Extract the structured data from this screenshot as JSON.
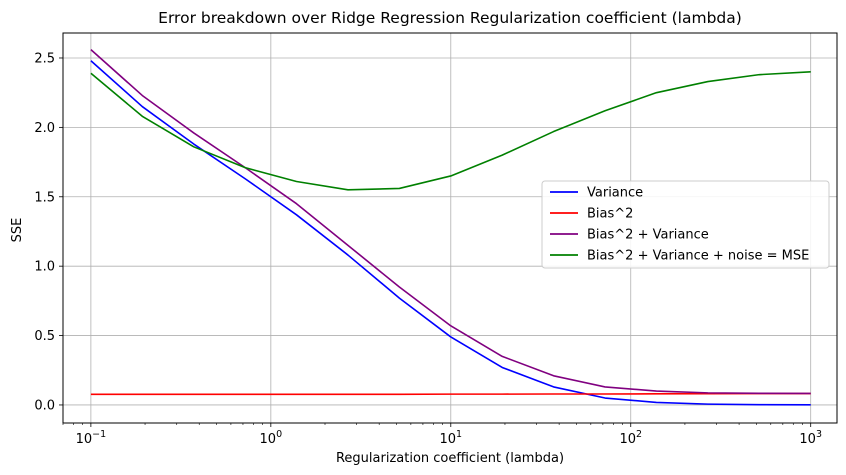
{
  "chart_data": {
    "type": "line",
    "title": "Error breakdown over Ridge Regression Regularization coefficient (lambda)",
    "xlabel": "Regularization coefficient (lambda)",
    "ylabel": "SSE",
    "xscale": "log",
    "xlim": [
      0.07,
      1400
    ],
    "ylim": [
      -0.13,
      2.68
    ],
    "grid": true,
    "legend_position": "center-right",
    "x_ticks": [
      {
        "value": 0.1,
        "base": "10",
        "exp": "−1"
      },
      {
        "value": 1,
        "base": "10",
        "exp": "0"
      },
      {
        "value": 10,
        "base": "10",
        "exp": "1"
      },
      {
        "value": 100,
        "base": "10",
        "exp": "2"
      },
      {
        "value": 1000,
        "base": "10",
        "exp": "3"
      }
    ],
    "y_ticks": [
      {
        "value": 0.0,
        "label": "0.0"
      },
      {
        "value": 0.5,
        "label": "0.5"
      },
      {
        "value": 1.0,
        "label": "1.0"
      },
      {
        "value": 1.5,
        "label": "1.5"
      },
      {
        "value": 2.0,
        "label": "2.0"
      },
      {
        "value": 2.5,
        "label": "2.5"
      }
    ],
    "x": [
      0.1,
      0.193,
      0.373,
      0.72,
      1.389,
      2.683,
      5.179,
      10.0,
      19.31,
      37.28,
      71.97,
      138.9,
      268.3,
      517.9,
      1000
    ],
    "series": [
      {
        "name": "Variance",
        "color": "#0000ff",
        "values": [
          2.48,
          2.15,
          1.88,
          1.63,
          1.37,
          1.08,
          0.77,
          0.49,
          0.27,
          0.13,
          0.05,
          0.018,
          0.006,
          0.002,
          0.001
        ]
      },
      {
        "name": "Bias^2",
        "color": "#ff0000",
        "values": [
          0.077,
          0.077,
          0.077,
          0.077,
          0.077,
          0.077,
          0.077,
          0.078,
          0.078,
          0.079,
          0.079,
          0.08,
          0.081,
          0.082,
          0.082
        ]
      },
      {
        "name": "Bias^2 + Variance",
        "color": "#800080",
        "values": [
          2.56,
          2.23,
          1.96,
          1.71,
          1.45,
          1.15,
          0.85,
          0.57,
          0.35,
          0.21,
          0.13,
          0.1,
          0.087,
          0.084,
          0.083
        ]
      },
      {
        "name": "Bias^2 + Variance + noise = MSE",
        "color": "#008000",
        "values": [
          2.39,
          2.08,
          1.86,
          1.71,
          1.61,
          1.55,
          1.56,
          1.65,
          1.8,
          1.97,
          2.12,
          2.25,
          2.33,
          2.38,
          2.4
        ]
      }
    ]
  }
}
